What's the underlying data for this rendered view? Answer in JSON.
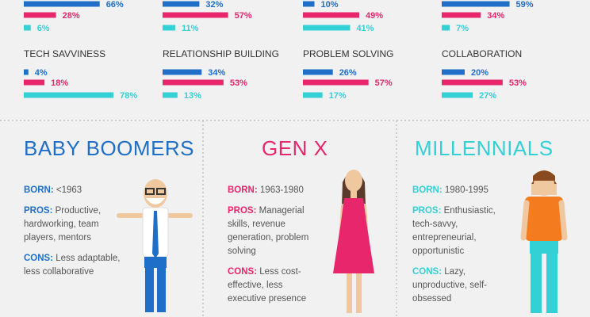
{
  "chart_data": [
    {
      "type": "bar",
      "orientation": "horizontal",
      "values": [
        66,
        28,
        6
      ],
      "value_labels": [
        "66%",
        "28%",
        "6%"
      ],
      "colors": [
        "#1f6fc8",
        "#e8266b",
        "#33d1d6"
      ],
      "xlim": [
        0,
        100
      ]
    },
    {
      "type": "bar",
      "orientation": "horizontal",
      "values": [
        32,
        57,
        11
      ],
      "value_labels": [
        "32%",
        "57%",
        "11%"
      ],
      "colors": [
        "#1f6fc8",
        "#e8266b",
        "#33d1d6"
      ],
      "xlim": [
        0,
        100
      ]
    },
    {
      "type": "bar",
      "orientation": "horizontal",
      "values": [
        10,
        49,
        41
      ],
      "value_labels": [
        "10%",
        "49%",
        "41%"
      ],
      "colors": [
        "#1f6fc8",
        "#e8266b",
        "#33d1d6"
      ],
      "xlim": [
        0,
        100
      ]
    },
    {
      "type": "bar",
      "orientation": "horizontal",
      "values": [
        59,
        34,
        7
      ],
      "value_labels": [
        "59%",
        "34%",
        "7%"
      ],
      "colors": [
        "#1f6fc8",
        "#e8266b",
        "#33d1d6"
      ],
      "xlim": [
        0,
        100
      ]
    },
    {
      "type": "bar",
      "orientation": "horizontal",
      "title": "TECH SAVVINESS",
      "values": [
        4,
        18,
        78
      ],
      "value_labels": [
        "4%",
        "18%",
        "78%"
      ],
      "colors": [
        "#1f6fc8",
        "#e8266b",
        "#33d1d6"
      ],
      "xlim": [
        0,
        100
      ]
    },
    {
      "type": "bar",
      "orientation": "horizontal",
      "title": "RELATIONSHIP BUILDING",
      "values": [
        34,
        53,
        13
      ],
      "value_labels": [
        "34%",
        "53%",
        "13%"
      ],
      "colors": [
        "#1f6fc8",
        "#e8266b",
        "#33d1d6"
      ],
      "xlim": [
        0,
        100
      ]
    },
    {
      "type": "bar",
      "orientation": "horizontal",
      "title": "PROBLEM SOLVING",
      "values": [
        26,
        57,
        17
      ],
      "value_labels": [
        "26%",
        "57%",
        "17%"
      ],
      "colors": [
        "#1f6fc8",
        "#e8266b",
        "#33d1d6"
      ],
      "xlim": [
        0,
        100
      ]
    },
    {
      "type": "bar",
      "orientation": "horizontal",
      "title": "COLLABORATION",
      "values": [
        20,
        53,
        27
      ],
      "value_labels": [
        "20%",
        "53%",
        "27%"
      ],
      "colors": [
        "#1f6fc8",
        "#e8266b",
        "#33d1d6"
      ],
      "xlim": [
        0,
        100
      ]
    }
  ],
  "generations": [
    {
      "name": "BABY BOOMERS",
      "color": "#1f6fc8",
      "born_label": "BORN:",
      "born": "<1963",
      "pros_label": "PROS:",
      "pros": "Productive, hardworking, team players, mentors",
      "cons_label": "CONS:",
      "cons": "Less adaptable, less collaborative"
    },
    {
      "name": "GEN X",
      "color": "#e8266b",
      "born_label": "BORN:",
      "born": "1963-1980",
      "pros_label": "PROS:",
      "pros": "Managerial skills, revenue generation, problem solving",
      "cons_label": "CONS:",
      "cons": "Less cost-effective, less executive presence"
    },
    {
      "name": "MILLENNIALS",
      "color": "#33d1d6",
      "born_label": "BORN:",
      "born": "1980-1995",
      "pros_label": "PROS:",
      "pros": "Enthusiastic, tech-savvy, entrepreneurial, opportunistic",
      "cons_label": "CONS:",
      "cons": "Lazy, unproductive, self-obsessed"
    }
  ]
}
